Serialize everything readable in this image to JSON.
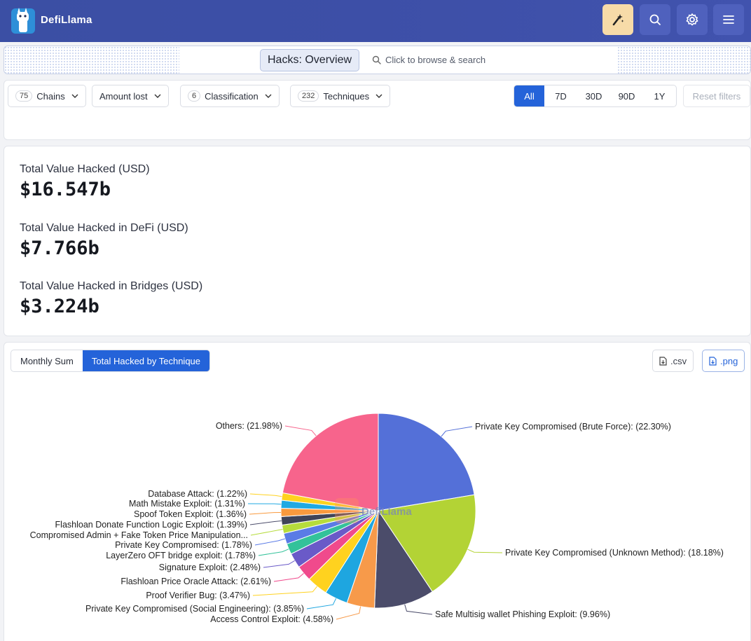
{
  "header": {
    "brand": "DefiLlama",
    "icons": [
      "llama-logo-icon",
      "sparkle-icon",
      "search-icon",
      "gear-icon",
      "menu-icon"
    ]
  },
  "searchbar": {
    "title": "Hacks: Overview",
    "placeholder": "Click to browse & search"
  },
  "filters": {
    "chains": {
      "count": "75",
      "label": "Chains"
    },
    "amount": {
      "label": "Amount lost"
    },
    "classification": {
      "count": "6",
      "label": "Classification"
    },
    "techniques": {
      "count": "232",
      "label": "Techniques"
    },
    "ranges": [
      "All",
      "7D",
      "30D",
      "90D",
      "1Y"
    ],
    "active_range": "All",
    "reset_label": "Reset filters"
  },
  "stats": [
    {
      "label": "Total Value Hacked (USD)",
      "value": "$16.547b"
    },
    {
      "label": "Total Value Hacked in DeFi (USD)",
      "value": "$7.766b"
    },
    {
      "label": "Total Value Hacked in Bridges (USD)",
      "value": "$3.224b"
    }
  ],
  "chart_tabs": {
    "monthly": "Monthly Sum",
    "technique": "Total Hacked by Technique",
    "active": "Total Hacked by Technique"
  },
  "downloads": {
    "csv": ".csv",
    "png": ".png"
  },
  "watermark": "DefiLlama",
  "colors": {
    "accent": "#2463d9",
    "header": "#3d4fa7"
  },
  "chart_data": {
    "type": "pie",
    "title": "",
    "slices": [
      {
        "label": "Private Key Compromised (Brute Force): (22.30%)",
        "value": 22.3,
        "color": "#5470d8"
      },
      {
        "label": "Private Key Compromised (Unknown Method): (18.18%)",
        "value": 18.18,
        "color": "#b3d335"
      },
      {
        "label": "Safe Multisig wallet Phishing Exploit: (9.96%)",
        "value": 9.96,
        "color": "#4b4c6a"
      },
      {
        "label": "Access Control Exploit: (4.58%)",
        "value": 4.58,
        "color": "#f79a4a"
      },
      {
        "label": "Private Key Compromised (Social Engineering): (3.85%)",
        "value": 3.85,
        "color": "#1ea6e0"
      },
      {
        "label": "Proof Verifier Bug: (3.47%)",
        "value": 3.47,
        "color": "#ffd21f"
      },
      {
        "label": "Flashloan Price Oracle Attack: (2.61%)",
        "value": 2.61,
        "color": "#f04a8c"
      },
      {
        "label": "Signature Exploit: (2.48%)",
        "value": 2.48,
        "color": "#6a5ac8"
      },
      {
        "label": "LayerZero OFT bridge exploit: (1.78%)",
        "value": 1.78,
        "color": "#33c29a"
      },
      {
        "label": "Private Key Compromised: (1.78%)",
        "value": 1.78,
        "color": "#5a7be6"
      },
      {
        "label": "Compromised Admin + Fake Token Price Manipulation...",
        "value": 1.39,
        "color": "#b6dc3c"
      },
      {
        "label": "Flashloan Donate Function Logic Exploit: (1.39%)",
        "value": 1.39,
        "color": "#3f4458"
      },
      {
        "label": "Spoof Token Exploit: (1.36%)",
        "value": 1.36,
        "color": "#f99a3e"
      },
      {
        "label": "Math Mistake Exploit: (1.31%)",
        "value": 1.31,
        "color": "#20a9e2"
      },
      {
        "label": "Database Attack: (1.22%)",
        "value": 1.22,
        "color": "#ffd21f"
      },
      {
        "label": "Others: (21.98%)",
        "value": 21.98,
        "color": "#f7648c"
      }
    ]
  }
}
